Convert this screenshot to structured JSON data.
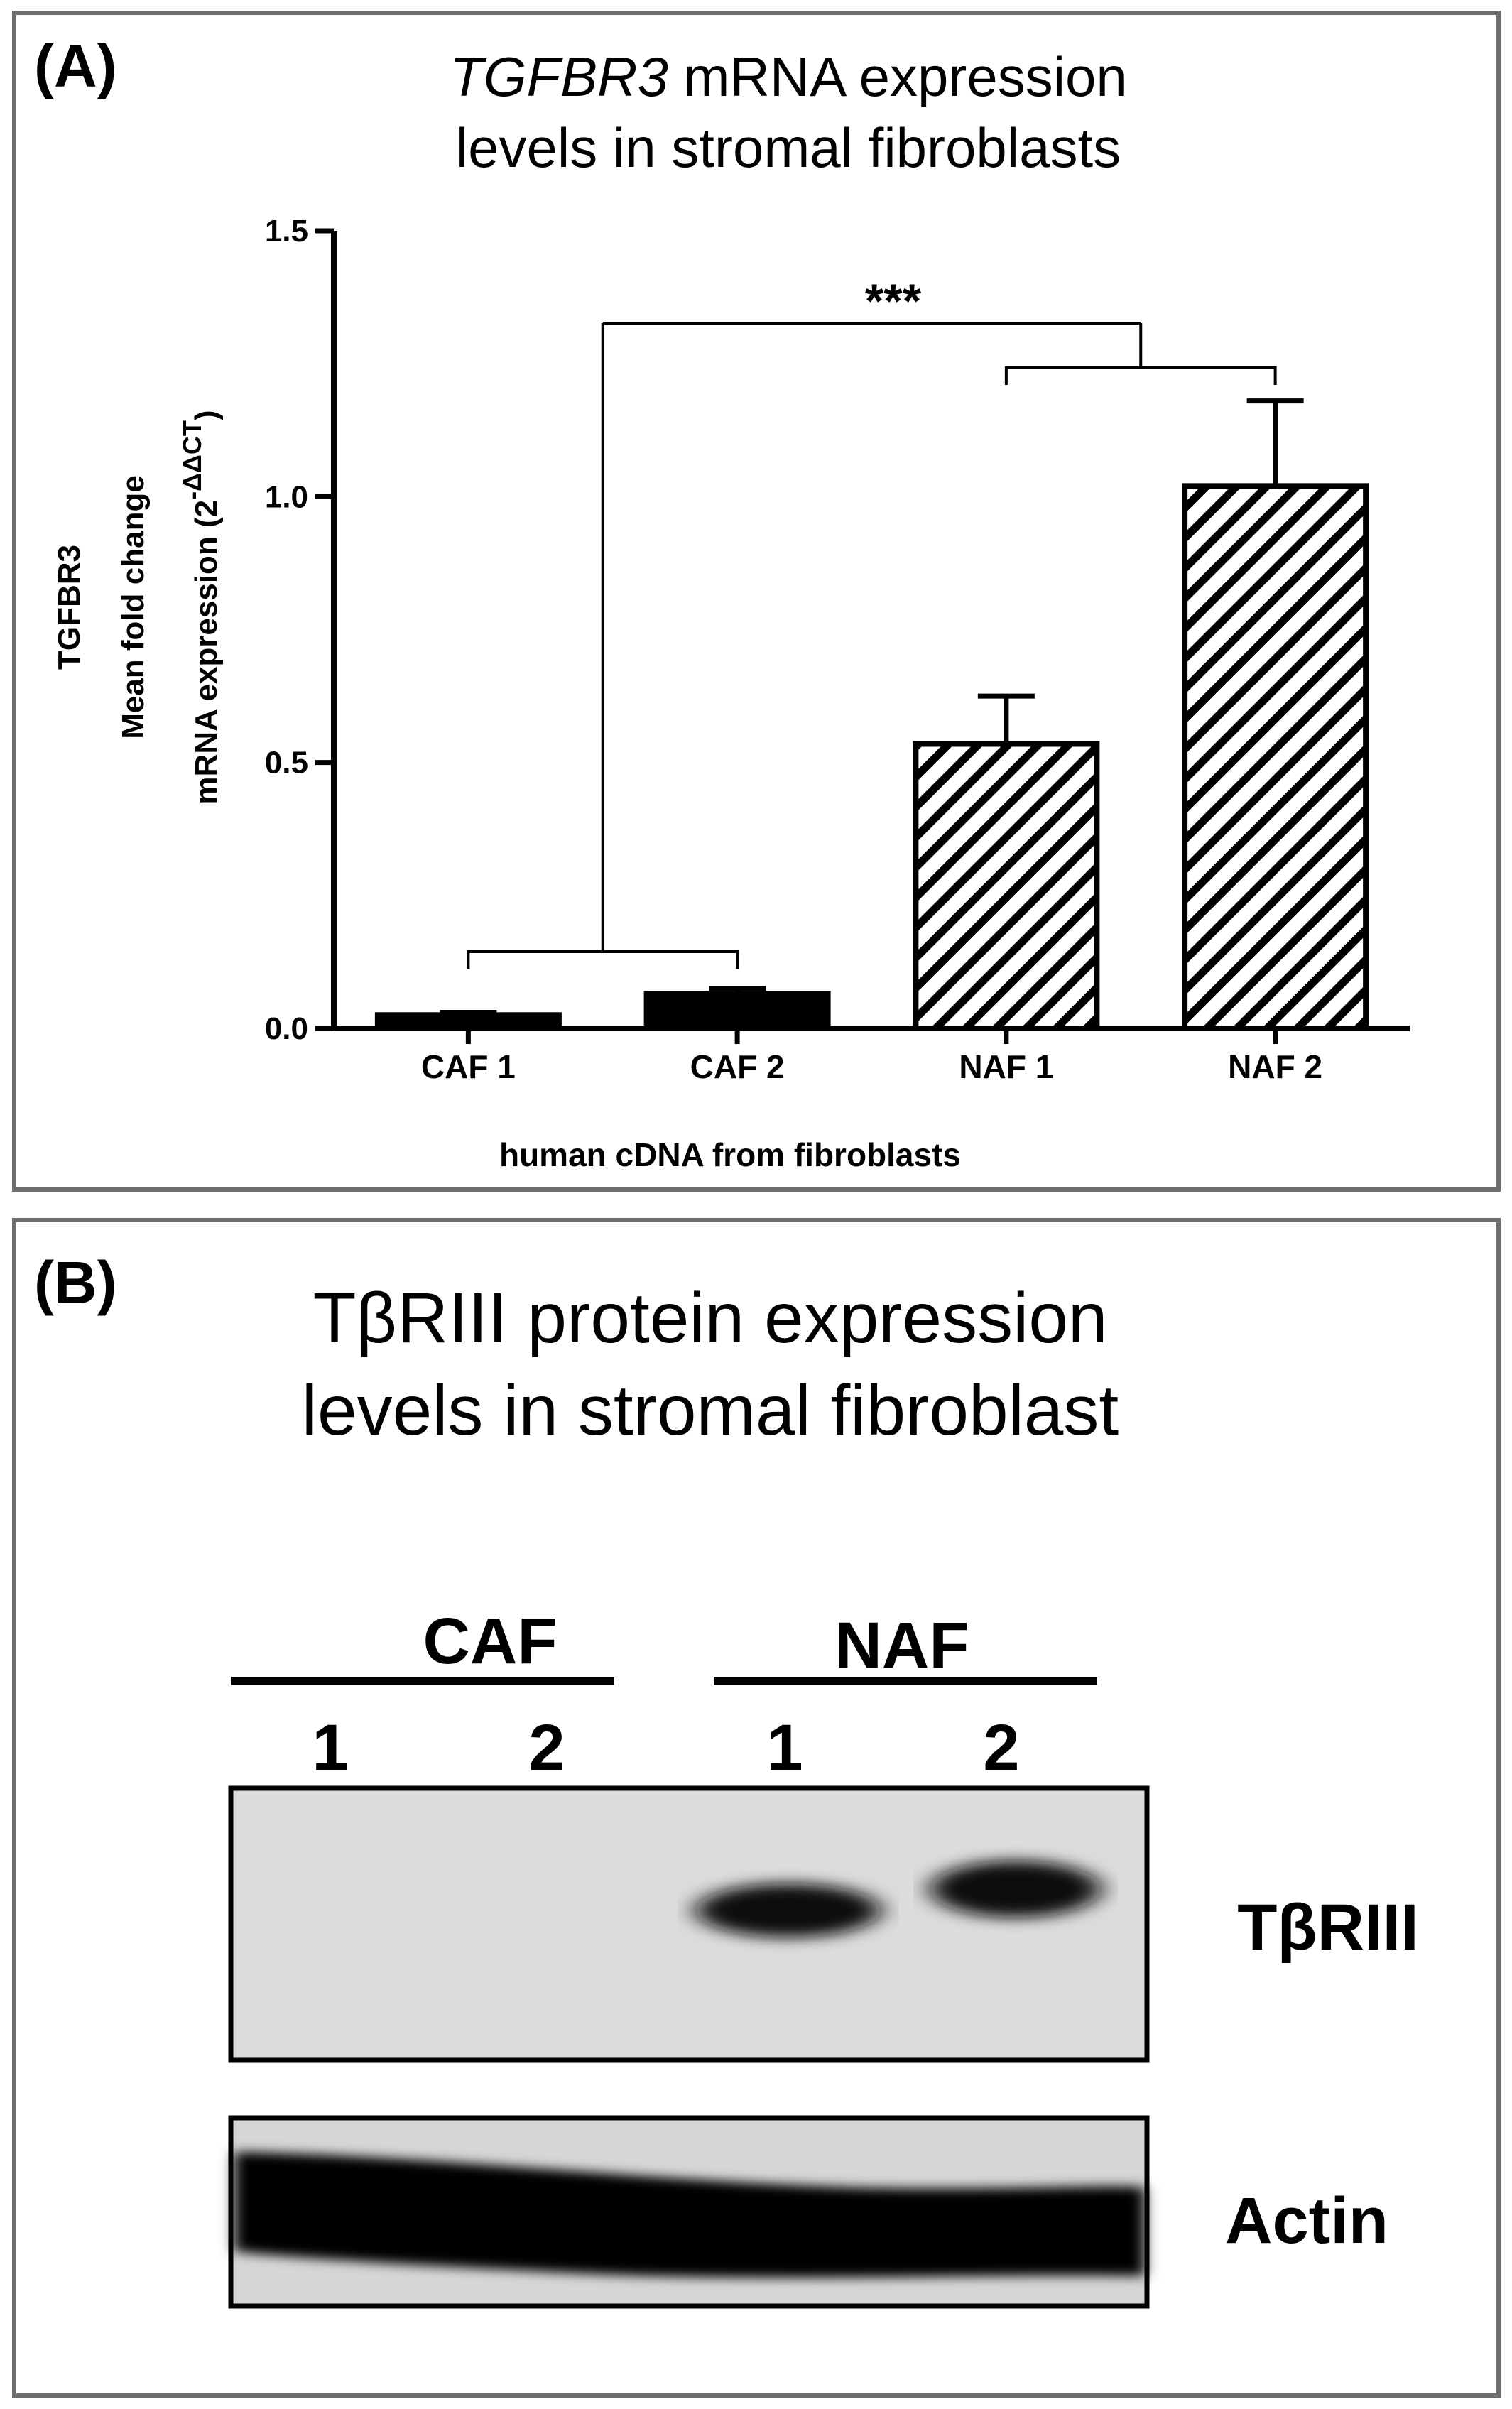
{
  "panel_a": {
    "label": "(A)",
    "title_line1_italic": "TGFBR3",
    "title_line1_rest": " mRNA expression",
    "title_line2": "levels in  stromal fibroblasts",
    "ylabel_line1": "TGFBR3",
    "ylabel_line2": "Mean fold change",
    "ylabel_line3_prefix": "mRNA expression (2",
    "ylabel_line3_sup": "-ΔΔCT",
    "ylabel_line3_suffix": ")",
    "xlabel": "human cDNA from fibroblasts",
    "significance": "***"
  },
  "chart_data": {
    "type": "bar",
    "categories": [
      "CAF 1",
      "CAF 2",
      "NAF 1",
      "NAF 2"
    ],
    "values": [
      0.025,
      0.065,
      0.535,
      1.02
    ],
    "errors": [
      0.005,
      0.01,
      0.09,
      0.16
    ],
    "fills": [
      "solid",
      "solid",
      "hatch",
      "hatch"
    ],
    "colors": {
      "solid": "#000000",
      "hatch": "#000000"
    },
    "ylim": [
      0,
      1.5
    ],
    "yticks": [
      0.0,
      0.5,
      1.0,
      1.5
    ],
    "ytick_labels": [
      "0.0",
      "0.5",
      "1.0",
      "1.5"
    ],
    "title": "TGFBR3 mRNA expression levels in  stromal fibroblasts",
    "xlabel": "human cDNA from fibroblasts",
    "ylabel": "TGFBR3 Mean fold change mRNA expression (2-ΔΔCT)",
    "grid": false,
    "legend": "none",
    "annotation": "***"
  },
  "panel_b": {
    "label": "(B)",
    "title_line1": "TβRIII protein expression",
    "title_line2": "levels in  stromal fibroblast",
    "group_caf": "CAF",
    "group_naf": "NAF",
    "lanes": [
      "1",
      "2",
      "1",
      "2"
    ],
    "blot_top_label": "TβRIII",
    "blot_bottom_label": "Actin"
  }
}
